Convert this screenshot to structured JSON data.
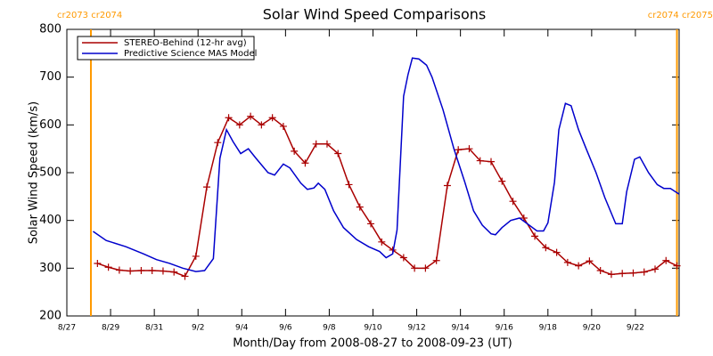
{
  "chart_data": {
    "type": "line",
    "title": "Solar Wind Speed Comparisons",
    "x_label": "Month/Day from 2008-08-27 to 2008-09-23 (UT)",
    "y_label": "Solar Wind Speed (km/s)",
    "xlim": [
      0,
      28
    ],
    "ylim": [
      200,
      800
    ],
    "xticks": [
      {
        "value": 0,
        "label": "8/27"
      },
      {
        "value": 2,
        "label": "8/29"
      },
      {
        "value": 4,
        "label": "8/31"
      },
      {
        "value": 6,
        "label": "9/2"
      },
      {
        "value": 8,
        "label": "9/4"
      },
      {
        "value": 10,
        "label": "9/6"
      },
      {
        "value": 12,
        "label": "9/8"
      },
      {
        "value": 14,
        "label": "9/10"
      },
      {
        "value": 16,
        "label": "9/12"
      },
      {
        "value": 18,
        "label": "9/14"
      },
      {
        "value": 20,
        "label": "9/16"
      },
      {
        "value": 22,
        "label": "9/18"
      },
      {
        "value": 24,
        "label": "9/20"
      },
      {
        "value": 26,
        "label": "9/22"
      }
    ],
    "yticks": [
      200,
      300,
      400,
      500,
      600,
      700,
      800
    ],
    "legend": "upper-left",
    "boundaries": [
      {
        "x": 1.1,
        "label": "cr2073 cr2074",
        "color": "#ff9900"
      },
      {
        "x": 27.9,
        "label": "cr2074 cr2075",
        "color": "#ff9900"
      }
    ],
    "series": [
      {
        "name": "STEREO-Behind (12-hr avg)",
        "color": "#aa0000",
        "marker": "+",
        "x": [
          1.4,
          1.9,
          2.4,
          2.9,
          3.4,
          3.9,
          4.4,
          4.9,
          5.4,
          5.9,
          6.4,
          6.9,
          7.4,
          7.9,
          8.4,
          8.9,
          9.4,
          9.9,
          10.4,
          10.9,
          11.4,
          11.9,
          12.4,
          12.9,
          13.4,
          13.9,
          14.4,
          14.9,
          15.4,
          15.9,
          16.4,
          16.9,
          17.4,
          17.9,
          18.4,
          18.9,
          19.4,
          19.9,
          20.4,
          20.9,
          21.4,
          21.9,
          22.4,
          22.9,
          23.4,
          23.9,
          24.4,
          24.9,
          25.4,
          25.9,
          26.4,
          26.9,
          27.4,
          27.9
        ],
        "values": [
          310,
          302,
          296,
          294,
          295,
          295,
          294,
          292,
          283,
          325,
          470,
          563,
          615,
          600,
          618,
          600,
          615,
          597,
          545,
          520,
          560,
          560,
          540,
          475,
          428,
          393,
          355,
          338,
          322,
          300,
          300,
          316,
          473,
          548,
          550,
          525,
          523,
          482,
          440,
          405,
          367,
          343,
          333,
          312,
          305,
          315,
          295,
          287,
          289,
          290,
          292,
          298,
          316,
          305
        ]
      },
      {
        "name": "Predictive Science MAS Model",
        "color": "#0000cc",
        "x": [
          1.2,
          1.8,
          2.7,
          3.5,
          4.1,
          4.7,
          5.3,
          5.9,
          6.3,
          6.7,
          7.0,
          7.3,
          7.6,
          7.95,
          8.3,
          8.65,
          9.2,
          9.5,
          9.9,
          10.2,
          10.7,
          11.0,
          11.3,
          11.5,
          11.8,
          12.2,
          12.65,
          13.25,
          13.8,
          14.3,
          14.6,
          14.9,
          15.1,
          15.4,
          15.6,
          15.8,
          16.1,
          16.45,
          16.7,
          17.2,
          17.7,
          18.2,
          18.6,
          19.0,
          19.4,
          19.6,
          19.9,
          20.3,
          20.7,
          21.0,
          21.5,
          21.8,
          22.0,
          22.3,
          22.5,
          22.8,
          23.06,
          23.4,
          23.75,
          24.2,
          24.6,
          25.1,
          25.4,
          25.6,
          25.96,
          26.2,
          26.6,
          27.0,
          27.3,
          27.6,
          28.0
        ],
        "values": [
          377,
          358,
          345,
          330,
          318,
          310,
          300,
          293,
          295,
          320,
          530,
          590,
          565,
          540,
          550,
          530,
          500,
          495,
          518,
          510,
          478,
          465,
          468,
          478,
          465,
          420,
          385,
          360,
          345,
          335,
          322,
          330,
          380,
          660,
          705,
          740,
          738,
          725,
          700,
          632,
          550,
          480,
          420,
          390,
          372,
          370,
          385,
          400,
          405,
          395,
          378,
          378,
          395,
          480,
          590,
          645,
          640,
          590,
          550,
          500,
          448,
          393,
          393,
          460,
          528,
          533,
          500,
          475,
          467,
          467,
          455
        ]
      }
    ]
  }
}
